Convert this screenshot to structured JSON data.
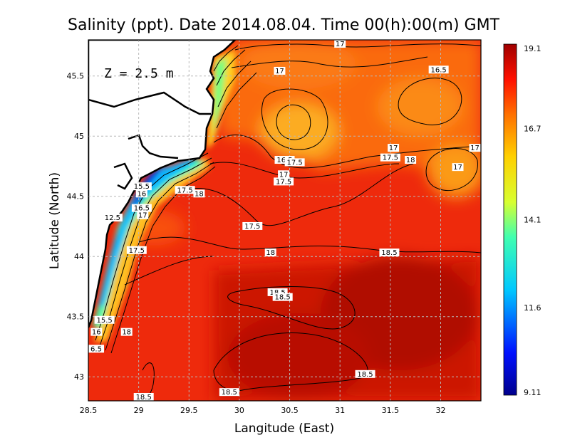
{
  "chart_data": {
    "type": "heatmap",
    "title": "Salinity (ppt). Date 2014.08.04. Time 00(h):00(m) GMT",
    "xlabel": "Langitude (East)",
    "ylabel": "Latitude (North)",
    "depth_label": "Z = 2.5 m",
    "xlim": [
      28.5,
      32.4
    ],
    "ylim": [
      42.8,
      45.8
    ],
    "x_ticks": [
      "28.5",
      "29",
      "29.5",
      "30",
      "30.5",
      "31",
      "31.5",
      "32"
    ],
    "x_tick_values": [
      28.5,
      29,
      29.5,
      30,
      30.5,
      31,
      31.5,
      32
    ],
    "y_ticks": [
      "43",
      "43.5",
      "44",
      "44.5",
      "45",
      "45.5"
    ],
    "y_tick_values": [
      43,
      43.5,
      44,
      44.5,
      45,
      45.5
    ],
    "grid": true,
    "colorbar": {
      "min": 9.11,
      "max": 19.1,
      "tick_labels": [
        "19.1",
        "16.7",
        "14.1",
        "11.6",
        "9.11"
      ],
      "tick_values": [
        19.1,
        16.7,
        14.1,
        11.6,
        9.11
      ]
    },
    "contour_labels": [
      {
        "text": "17",
        "x": 31.0,
        "y": 45.78
      },
      {
        "text": "17",
        "x": 30.4,
        "y": 45.54
      },
      {
        "text": "16.5",
        "x": 31.98,
        "y": 45.55
      },
      {
        "text": "17",
        "x": 31.53,
        "y": 44.9
      },
      {
        "text": "17",
        "x": 32.34,
        "y": 44.9
      },
      {
        "text": "17.5",
        "x": 31.5,
        "y": 44.82
      },
      {
        "text": "18",
        "x": 31.7,
        "y": 44.8
      },
      {
        "text": "17",
        "x": 32.17,
        "y": 44.74
      },
      {
        "text": "16.5",
        "x": 30.45,
        "y": 44.8
      },
      {
        "text": "17.5",
        "x": 30.55,
        "y": 44.78
      },
      {
        "text": "17",
        "x": 30.44,
        "y": 44.68
      },
      {
        "text": "17.5",
        "x": 30.44,
        "y": 44.62
      },
      {
        "text": "17.5",
        "x": 29.46,
        "y": 44.55
      },
      {
        "text": "18",
        "x": 29.6,
        "y": 44.52
      },
      {
        "text": "15.5",
        "x": 29.03,
        "y": 44.58
      },
      {
        "text": "16",
        "x": 29.03,
        "y": 44.52
      },
      {
        "text": "16.5",
        "x": 29.03,
        "y": 44.4
      },
      {
        "text": "17",
        "x": 29.04,
        "y": 44.34
      },
      {
        "text": "12.5",
        "x": 28.74,
        "y": 44.32
      },
      {
        "text": "17.5",
        "x": 30.13,
        "y": 44.25
      },
      {
        "text": "17.5",
        "x": 28.98,
        "y": 44.05
      },
      {
        "text": "18",
        "x": 30.31,
        "y": 44.03
      },
      {
        "text": "18.5",
        "x": 31.49,
        "y": 44.03
      },
      {
        "text": "18.5",
        "x": 30.38,
        "y": 43.7
      },
      {
        "text": "18.5",
        "x": 30.43,
        "y": 43.66
      },
      {
        "text": "15.5",
        "x": 28.66,
        "y": 43.47
      },
      {
        "text": "16",
        "x": 28.58,
        "y": 43.37
      },
      {
        "text": "18",
        "x": 28.88,
        "y": 43.37
      },
      {
        "text": "6.5",
        "x": 28.54,
        "y": 43.23
      },
      {
        "text": "18.5",
        "x": 31.25,
        "y": 43.02
      },
      {
        "text": "18.5",
        "x": 29.9,
        "y": 42.87
      },
      {
        "text": "18.5",
        "x": 29.05,
        "y": 42.8
      }
    ]
  }
}
